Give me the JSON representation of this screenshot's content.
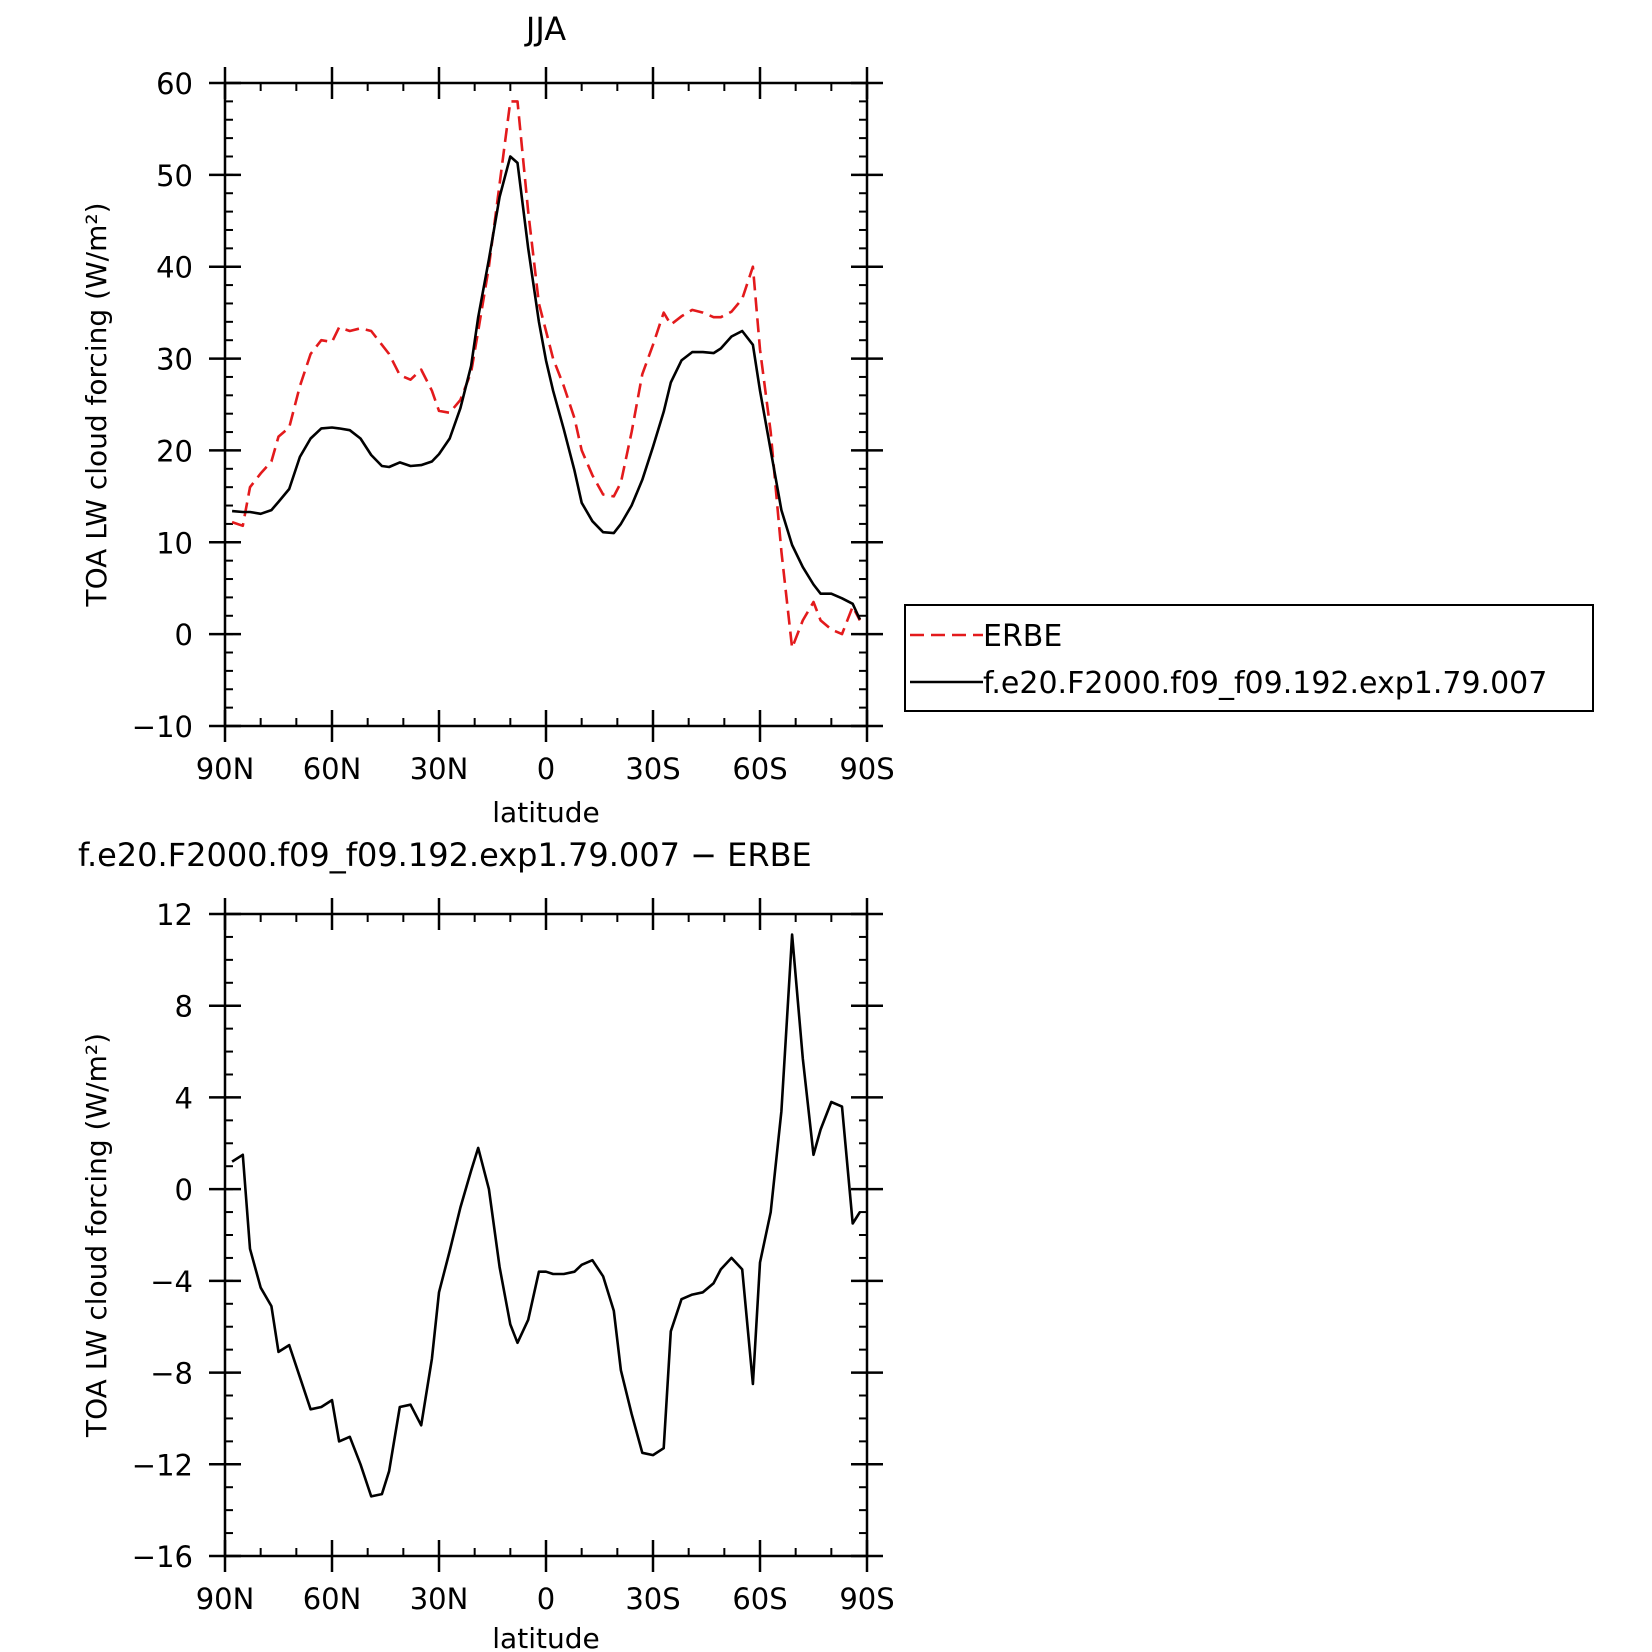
{
  "chart_data": [
    {
      "type": "line",
      "title": "JJA",
      "xlabel": "latitude",
      "ylabel": "TOA LW cloud forcing (W/m²)",
      "xlim": [
        90,
        -90
      ],
      "ylim": [
        -10,
        60
      ],
      "xticks": [
        {
          "value": 90,
          "label": "90N"
        },
        {
          "value": 60,
          "label": "60N"
        },
        {
          "value": 30,
          "label": "30N"
        },
        {
          "value": 0,
          "label": "0"
        },
        {
          "value": -30,
          "label": "30S"
        },
        {
          "value": -60,
          "label": "60S"
        },
        {
          "value": -90,
          "label": "90S"
        }
      ],
      "yticks": [
        {
          "value": 60,
          "label": "60"
        },
        {
          "value": 50,
          "label": "50"
        },
        {
          "value": 40,
          "label": "40"
        },
        {
          "value": 30,
          "label": "30"
        },
        {
          "value": 20,
          "label": "20"
        },
        {
          "value": 10,
          "label": "10"
        },
        {
          "value": 0,
          "label": "0"
        },
        {
          "value": -10,
          "label": "−10"
        }
      ],
      "legend": "right",
      "series": [
        {
          "name": "ERBE",
          "color": "#e31a1c",
          "dash": "dashed",
          "x": [
            88,
            85,
            83,
            80,
            77,
            75,
            72,
            69,
            66,
            63,
            60,
            58,
            55,
            52,
            49,
            46,
            44,
            41,
            38,
            35,
            32,
            30,
            27,
            24,
            21,
            19,
            16,
            13,
            10,
            8,
            5,
            2,
            0,
            -2,
            -5,
            -8,
            -10,
            -13,
            -16,
            -19,
            -21,
            -24,
            -27,
            -30,
            -33,
            -35,
            -38,
            -41,
            -44,
            -47,
            -49,
            -52,
            -55,
            -58,
            -60,
            -63,
            -66,
            -69,
            -72,
            -75,
            -77,
            -80,
            -83,
            -86,
            -88
          ],
          "y": [
            12.2,
            11.8,
            16,
            17.5,
            18.8,
            21.5,
            22.5,
            27,
            30.5,
            32,
            31.8,
            33.4,
            33,
            33.3,
            33,
            31.5,
            30.5,
            28.2,
            27.7,
            28.8,
            26.5,
            24.3,
            24.1,
            25.5,
            28.5,
            33,
            40,
            49,
            58,
            58,
            46,
            36,
            33,
            30,
            27,
            23.5,
            20,
            17.3,
            15.2,
            15,
            16.5,
            22,
            28.3,
            31.5,
            35,
            33.7,
            34.6,
            35.3,
            35,
            34.5,
            34.5,
            35.1,
            36.5,
            40,
            31,
            22,
            9,
            -1.5,
            1.5,
            3.5,
            1.5,
            0.5,
            0,
            3,
            1.5
          ]
        },
        {
          "name": "f.e20.F2000.f09_f09.192.exp1.79.007",
          "color": "#000000",
          "dash": "solid",
          "x": [
            88,
            85,
            83,
            80,
            77,
            75,
            72,
            69,
            66,
            63,
            60,
            58,
            55,
            52,
            49,
            46,
            44,
            41,
            38,
            35,
            32,
            30,
            27,
            24,
            21,
            19,
            16,
            13,
            10,
            8,
            5,
            2,
            0,
            -2,
            -5,
            -8,
            -10,
            -13,
            -16,
            -19,
            -21,
            -24,
            -27,
            -30,
            -33,
            -35,
            -38,
            -41,
            -44,
            -47,
            -49,
            -52,
            -55,
            -58,
            -60,
            -63,
            -66,
            -69,
            -72,
            -75,
            -77,
            -80,
            -83,
            -86,
            -88
          ],
          "y": [
            13.4,
            13.3,
            13.3,
            13.1,
            13.5,
            14.4,
            15.8,
            19.3,
            21.3,
            22.4,
            22.5,
            22.4,
            22.2,
            21.3,
            19.5,
            18.3,
            18.2,
            18.7,
            18.3,
            18.4,
            18.8,
            19.6,
            21.3,
            24.6,
            29.2,
            34.5,
            40.8,
            47.6,
            52,
            51.3,
            42,
            34,
            29.8,
            26.5,
            22.3,
            17.8,
            14.3,
            12.3,
            11.1,
            11,
            12,
            14,
            16.8,
            20.4,
            24.2,
            27.4,
            29.8,
            30.7,
            30.7,
            30.6,
            31.1,
            32.4,
            33,
            31.5,
            26.5,
            20,
            13.5,
            9.7,
            7.3,
            5.4,
            4.4,
            4.4,
            3.9,
            3.3,
            1.6
          ]
        }
      ]
    },
    {
      "type": "line",
      "title": "f.e20.F2000.f09_f09.192.exp1.79.007 − ERBE",
      "xlabel": "latitude",
      "ylabel": "TOA LW cloud forcing (W/m²)",
      "xlim": [
        90,
        -90
      ],
      "ylim": [
        -16,
        12
      ],
      "xticks": [
        {
          "value": 90,
          "label": "90N"
        },
        {
          "value": 60,
          "label": "60N"
        },
        {
          "value": 30,
          "label": "30N"
        },
        {
          "value": 0,
          "label": "0"
        },
        {
          "value": -30,
          "label": "30S"
        },
        {
          "value": -60,
          "label": "60S"
        },
        {
          "value": -90,
          "label": "90S"
        }
      ],
      "yticks": [
        {
          "value": 12,
          "label": "12"
        },
        {
          "value": 8,
          "label": "8"
        },
        {
          "value": 4,
          "label": "4"
        },
        {
          "value": 0,
          "label": "0"
        },
        {
          "value": -4,
          "label": "−4"
        },
        {
          "value": -8,
          "label": "−8"
        },
        {
          "value": -12,
          "label": "−12"
        },
        {
          "value": -16,
          "label": "−16"
        }
      ],
      "series": [
        {
          "color": "#000000",
          "dash": "solid",
          "x": [
            88,
            85,
            83,
            80,
            77,
            75,
            72,
            69,
            66,
            63,
            60,
            58,
            55,
            52,
            49,
            46,
            44,
            41,
            38,
            35,
            32,
            30,
            27,
            24,
            21,
            19,
            16,
            13,
            10,
            8,
            5,
            2,
            0,
            -2,
            -5,
            -8,
            -10,
            -13,
            -16,
            -19,
            -21,
            -24,
            -27,
            -30,
            -33,
            -35,
            -38,
            -41,
            -44,
            -47,
            -49,
            -52,
            -55,
            -58,
            -60,
            -63,
            -66,
            -69,
            -72,
            -75,
            -77,
            -80,
            -83,
            -86,
            -88
          ],
          "y": [
            1.2,
            1.5,
            -2.6,
            -4.3,
            -5.1,
            -7.1,
            -6.8,
            -8.2,
            -9.6,
            -9.5,
            -9.2,
            -11,
            -10.8,
            -12,
            -13.4,
            -13.3,
            -12.3,
            -9.5,
            -9.4,
            -10.3,
            -7.4,
            -4.5,
            -2.7,
            -0.8,
            0.8,
            1.8,
            0,
            -3.4,
            -5.9,
            -6.7,
            -5.7,
            -3.6,
            -3.6,
            -3.7,
            -3.7,
            -3.6,
            -3.3,
            -3.1,
            -3.8,
            -5.3,
            -7.9,
            -9.8,
            -11.5,
            -11.6,
            -11.3,
            -6.2,
            -4.8,
            -4.6,
            -4.5,
            -4.1,
            -3.5,
            -3,
            -3.5,
            -8.5,
            -3.2,
            -1,
            3.4,
            11.1,
            5.7,
            1.5,
            2.6,
            3.8,
            3.6,
            -1.5,
            -1
          ]
        }
      ]
    }
  ]
}
